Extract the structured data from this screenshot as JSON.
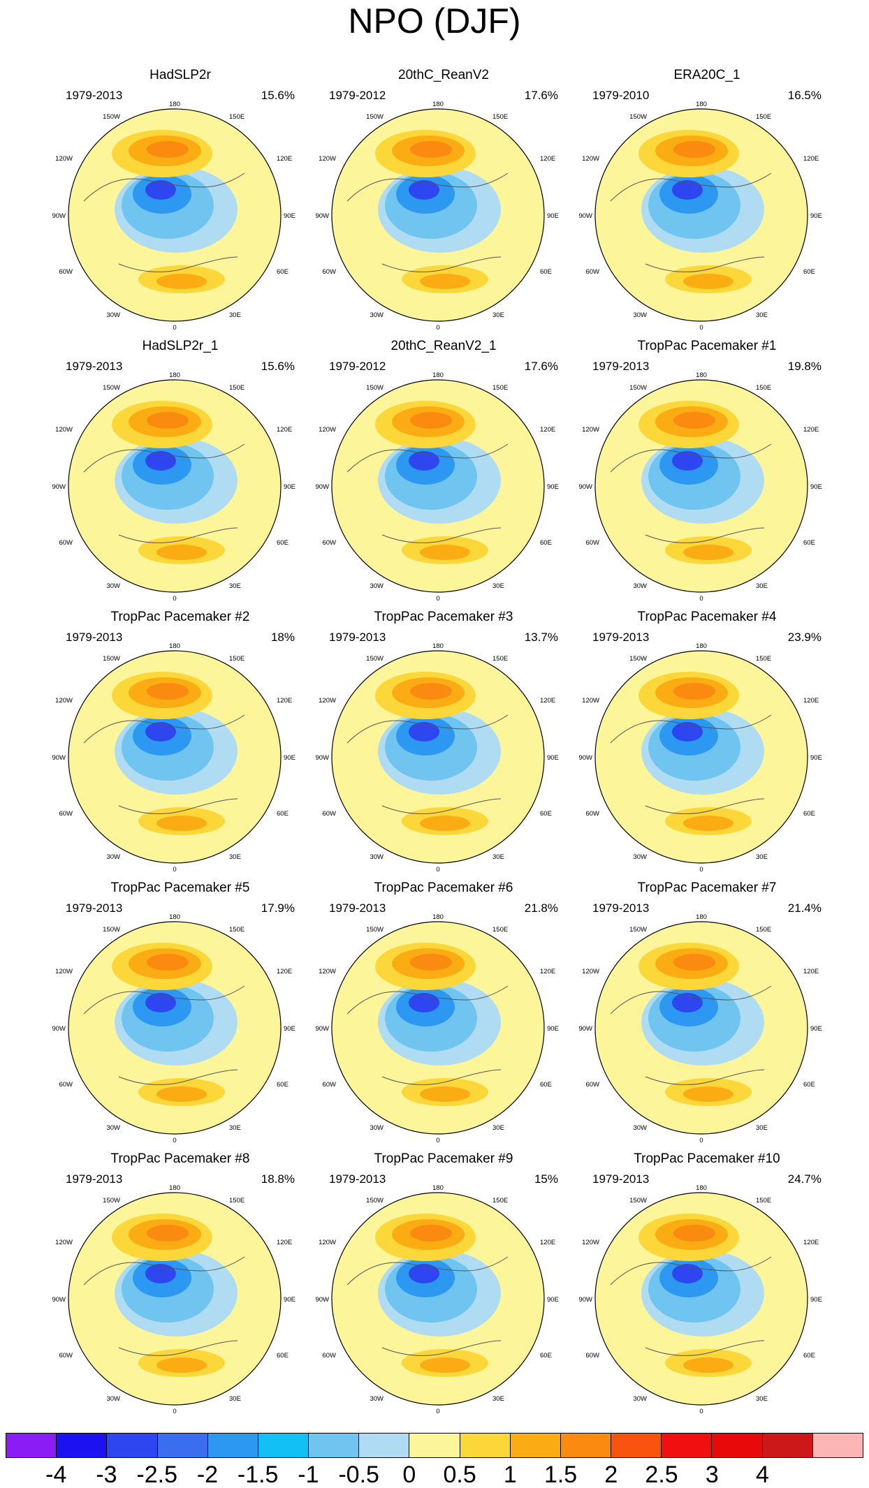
{
  "page": {
    "title": "NPO (DJF)"
  },
  "panel_labels": {
    "lat_top": "180",
    "lat_bottom": "0",
    "upper_left": "150W",
    "upper_right": "150E",
    "mid_upper_left": "120W",
    "mid_upper_right": "120E",
    "left": "90W",
    "right": "90E",
    "mid_lower_left": "60W",
    "mid_lower_right": "60E",
    "lower_left": "30W",
    "lower_right": "30E"
  },
  "colorbar": {
    "colors": [
      "#8a1cf5",
      "#1a12f0",
      "#2d46ef",
      "#3a6eee",
      "#2c98f2",
      "#12c0f5",
      "#70c4f0",
      "#b0dcf3",
      "#fdf59a",
      "#fcd73a",
      "#fbac12",
      "#fa8a10",
      "#f85410",
      "#f01010",
      "#e80a0a",
      "#cc1818",
      "#fdb6b6"
    ],
    "tick_labels": [
      "-4",
      "-3",
      "-2.5",
      "-2",
      "-1.5",
      "-1",
      "-0.5",
      "0",
      "0.5",
      "1",
      "1.5",
      "2",
      "2.5",
      "3",
      "4"
    ]
  },
  "chart_data": [
    {
      "type": "heatmap",
      "title": "HadSLP2r",
      "period": "1979-2013",
      "variance_explained": "15.6%",
      "projection": "north-polar-stereographic",
      "pattern": {
        "high": "North Pacific",
        "low": "Arctic"
      }
    },
    {
      "type": "heatmap",
      "title": "20thC_ReanV2",
      "period": "1979-2012",
      "variance_explained": "17.6%",
      "projection": "north-polar-stereographic",
      "pattern": {
        "high": "North Pacific",
        "low": "Arctic"
      }
    },
    {
      "type": "heatmap",
      "title": "ERA20C_1",
      "period": "1979-2010",
      "variance_explained": "16.5%",
      "projection": "north-polar-stereographic",
      "pattern": {
        "high": "North Pacific",
        "low": "Arctic"
      }
    },
    {
      "type": "heatmap",
      "title": "HadSLP2r_1",
      "period": "1979-2013",
      "variance_explained": "15.6%",
      "projection": "north-polar-stereographic",
      "pattern": {
        "high": "North Pacific",
        "low": "Arctic"
      }
    },
    {
      "type": "heatmap",
      "title": "20thC_ReanV2_1",
      "period": "1979-2012",
      "variance_explained": "17.6%",
      "projection": "north-polar-stereographic",
      "pattern": {
        "high": "North Pacific",
        "low": "Arctic"
      }
    },
    {
      "type": "heatmap",
      "title": "TropPac Pacemaker #1",
      "period": "1979-2013",
      "variance_explained": "19.8%",
      "projection": "north-polar-stereographic",
      "pattern": {
        "high": "North Pacific",
        "low": "Arctic"
      }
    },
    {
      "type": "heatmap",
      "title": "TropPac Pacemaker #2",
      "period": "1979-2013",
      "variance_explained": "18%",
      "projection": "north-polar-stereographic",
      "pattern": {
        "high": "North Pacific",
        "low": "Arctic"
      }
    },
    {
      "type": "heatmap",
      "title": "TropPac Pacemaker #3",
      "period": "1979-2013",
      "variance_explained": "13.7%",
      "projection": "north-polar-stereographic",
      "pattern": {
        "high": "North Pacific",
        "low": "Arctic"
      }
    },
    {
      "type": "heatmap",
      "title": "TropPac Pacemaker #4",
      "period": "1979-2013",
      "variance_explained": "23.9%",
      "projection": "north-polar-stereographic",
      "pattern": {
        "high": "North Pacific",
        "low": "Arctic"
      }
    },
    {
      "type": "heatmap",
      "title": "TropPac Pacemaker #5",
      "period": "1979-2013",
      "variance_explained": "17.9%",
      "projection": "north-polar-stereographic",
      "pattern": {
        "high": "North Pacific",
        "low": "Arctic"
      }
    },
    {
      "type": "heatmap",
      "title": "TropPac Pacemaker #6",
      "period": "1979-2013",
      "variance_explained": "21.8%",
      "projection": "north-polar-stereographic",
      "pattern": {
        "high": "North Pacific",
        "low": "Arctic"
      }
    },
    {
      "type": "heatmap",
      "title": "TropPac Pacemaker #7",
      "period": "1979-2013",
      "variance_explained": "21.4%",
      "projection": "north-polar-stereographic",
      "pattern": {
        "high": "North Pacific",
        "low": "Arctic"
      }
    },
    {
      "type": "heatmap",
      "title": "TropPac Pacemaker #8",
      "period": "1979-2013",
      "variance_explained": "18.8%",
      "projection": "north-polar-stereographic",
      "pattern": {
        "high": "North Pacific",
        "low": "Arctic"
      }
    },
    {
      "type": "heatmap",
      "title": "TropPac Pacemaker #9",
      "period": "1979-2013",
      "variance_explained": "15%",
      "projection": "north-polar-stereographic",
      "pattern": {
        "high": "North Pacific",
        "low": "Arctic"
      }
    },
    {
      "type": "heatmap",
      "title": "TropPac Pacemaker #10",
      "period": "1979-2013",
      "variance_explained": "24.7%",
      "projection": "north-polar-stereographic",
      "pattern": {
        "high": "North Pacific",
        "low": "Arctic"
      }
    }
  ]
}
